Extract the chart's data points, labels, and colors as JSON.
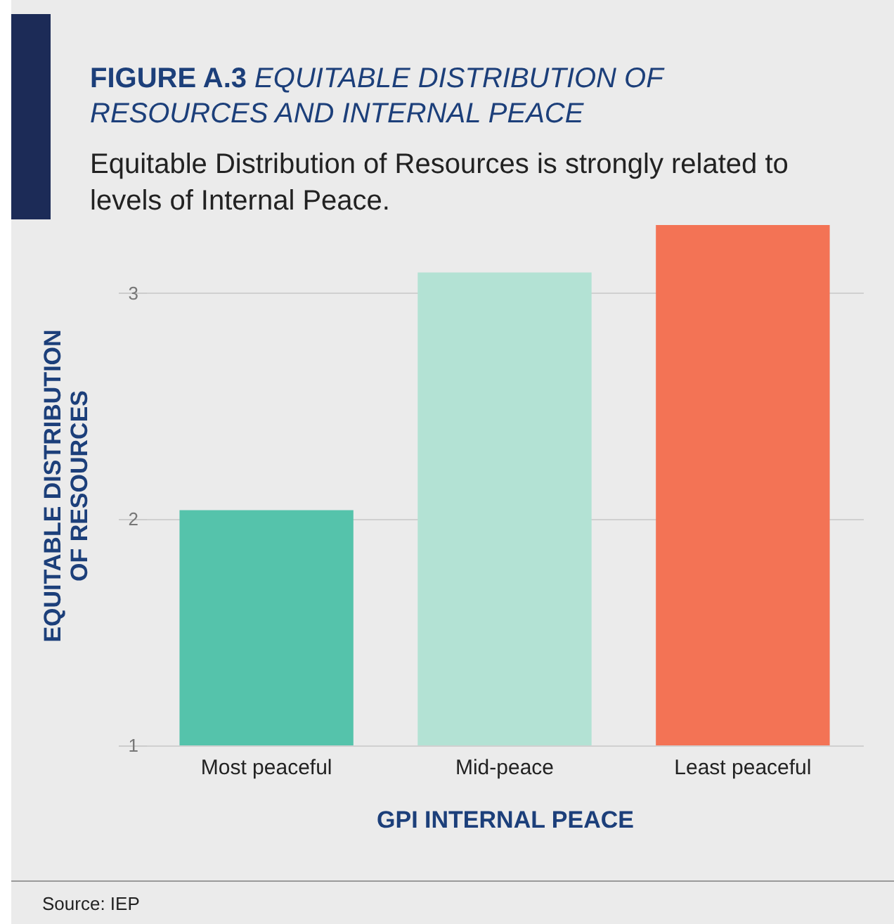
{
  "chart_data": {
    "type": "bar",
    "title": "FIGURE A.3 EQUITABLE DISTRIBUTION OF RESOURCES AND INTERNAL PEACE",
    "subtitle": "Equitable Distribution of Resources is strongly related to levels of Internal Peace.",
    "xlabel": "GPI INTERNAL PEACE",
    "ylabel": "EQUITABLE DISTRIBUTION OF RESOURCES",
    "categories": [
      "Most peaceful",
      "Mid-peace",
      "Least peaceful"
    ],
    "values": [
      2.04,
      3.09,
      3.3
    ],
    "colors": [
      "#55c3ab",
      "#b3e2d4",
      "#f37355"
    ],
    "ylim": [
      1,
      3.3
    ],
    "yticks": [
      1,
      2,
      3
    ],
    "grid": "y",
    "annotations": [
      "Source: IEP"
    ]
  }
}
